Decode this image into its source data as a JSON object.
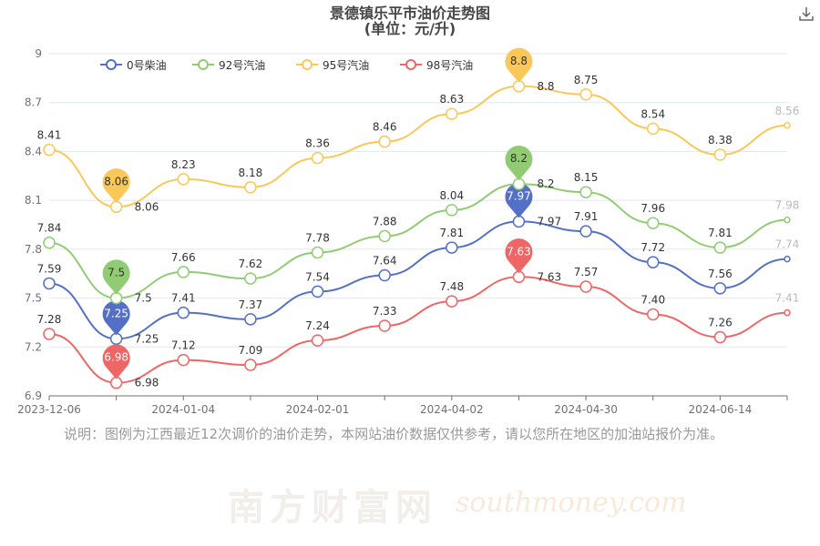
{
  "chart_data": {
    "type": "line",
    "title": "景德镇乐平市油价走势图",
    "subtitle": "(单位：元/升)",
    "x": [
      "2023-12-06",
      "",
      "2024-01-04",
      "",
      "2024-02-01",
      "",
      "2024-04-02",
      "",
      "2024-04-30",
      "",
      "2024-06-14",
      ""
    ],
    "x_tick_labels": [
      "2023-12-06",
      "2024-01-04",
      "2024-02-01",
      "2024-04-02",
      "2024-04-30",
      "2024-06-14"
    ],
    "y_ticks": [
      "6.9",
      "7.2",
      "7.5",
      "7.8",
      "8.1",
      "8.4",
      "8.7",
      "9"
    ],
    "ylim": [
      6.9,
      9
    ],
    "grid": true,
    "legend_position": "top",
    "series": [
      {
        "name": "0号柴油",
        "color": "#5470c6",
        "values": [
          7.59,
          7.25,
          7.41,
          7.37,
          7.54,
          7.64,
          7.81,
          7.97,
          7.91,
          7.72,
          7.56,
          7.74
        ],
        "labels": [
          "7.59",
          "7.25",
          "7.41",
          "7.37",
          "7.54",
          "7.64",
          "7.81",
          "7.97",
          "7.91",
          "7.72",
          "7.56",
          "7.74"
        ],
        "max_pin": "7.97",
        "min_pin": "7.25"
      },
      {
        "name": "92号汽油",
        "color": "#91cc75",
        "values": [
          7.84,
          7.5,
          7.66,
          7.62,
          7.78,
          7.88,
          8.04,
          8.2,
          8.15,
          7.96,
          7.81,
          7.98
        ],
        "labels": [
          "7.84",
          "7.5",
          "7.66",
          "7.62",
          "7.78",
          "7.88",
          "8.04",
          "8.2",
          "8.15",
          "7.96",
          "7.81",
          "7.98"
        ],
        "max_pin": "8.2",
        "min_pin": "7.5"
      },
      {
        "name": "95号汽油",
        "color": "#fac858",
        "values": [
          8.41,
          8.06,
          8.23,
          8.18,
          8.36,
          8.46,
          8.63,
          8.8,
          8.75,
          8.54,
          8.38,
          8.56
        ],
        "labels": [
          "8.41",
          "8.06",
          "8.23",
          "8.18",
          "8.36",
          "8.46",
          "8.63",
          "8.8",
          "8.75",
          "8.54",
          "8.38",
          "8.56"
        ],
        "max_pin": "8.8",
        "min_pin": "8.06"
      },
      {
        "name": "98号汽油",
        "color": "#ee6666",
        "values": [
          7.28,
          6.98,
          7.12,
          7.09,
          7.24,
          7.33,
          7.48,
          7.63,
          7.57,
          7.4,
          7.26,
          7.41
        ],
        "labels": [
          "7.28",
          "6.98",
          "7.12",
          "7.09",
          "7.24",
          "7.33",
          "7.48",
          "7.63",
          "7.57",
          "7.40",
          "7.26",
          "7.41"
        ],
        "max_pin": "7.63",
        "min_pin": "6.98"
      }
    ]
  },
  "note": "说明：图例为江西最近12次调价的油价走势，本网站油价数据仅供参考，请以您所在地区的加油站报价为准。",
  "watermark": {
    "cn": "南方财富网",
    "en": "southmoney.com"
  },
  "icons": {
    "download": "download-icon"
  }
}
